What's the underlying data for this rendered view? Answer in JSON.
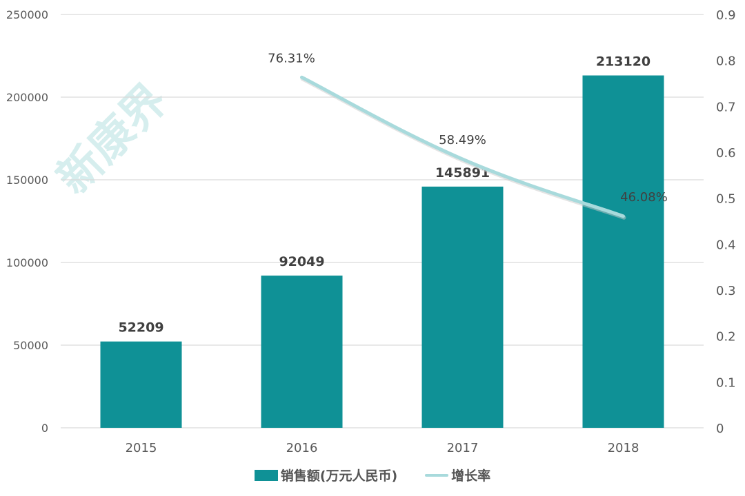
{
  "chart_data": {
    "type": "bar+line",
    "categories": [
      "2015",
      "2016",
      "2017",
      "2018"
    ],
    "series": [
      {
        "name": "销售额(万元人民币)",
        "type": "bar",
        "axis": "left",
        "values": [
          52209,
          92049,
          145891,
          213120
        ],
        "labels": [
          "52209",
          "92049",
          "145891",
          "213120"
        ],
        "color": "#0F9196"
      },
      {
        "name": "增长率",
        "type": "line",
        "axis": "right",
        "values": [
          null,
          0.7631,
          0.5849,
          0.4608
        ],
        "labels": [
          "",
          "76.31%",
          "58.49%",
          "46.08%"
        ],
        "color": "#A8DADC"
      }
    ],
    "left_axis": {
      "ticks": [
        "0",
        "50000",
        "100000",
        "150000",
        "200000",
        "250000"
      ],
      "ylim": [
        0,
        250000
      ]
    },
    "right_axis": {
      "ticks": [
        "0",
        "0.1",
        "0.2",
        "0.3",
        "0.4",
        "0.5",
        "0.6",
        "0.7",
        "0.8",
        "0.9"
      ],
      "ylim": [
        0,
        0.9
      ]
    },
    "grid": true,
    "legend_position": "bottom",
    "title": "",
    "xlabel": "",
    "ylabel": ""
  },
  "watermark": "新康界",
  "legend": {
    "bar_label": "销售额(万元人民币)",
    "line_label": "增长率"
  }
}
